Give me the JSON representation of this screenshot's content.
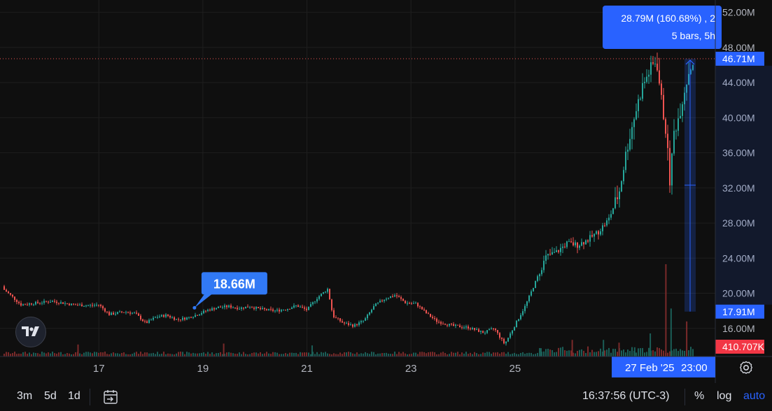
{
  "chart_data": {
    "type": "candlestick",
    "y_axis": {
      "ticks": [
        "52.00M",
        "48.00M",
        "44.00M",
        "40.00M",
        "36.00M",
        "32.00M",
        "28.00M",
        "24.00M",
        "20.00M",
        "16.00M"
      ],
      "tick_values": [
        52,
        48,
        44,
        40,
        36,
        32,
        28,
        24,
        20,
        16
      ],
      "unit": "M",
      "range": [
        12.8,
        53.4
      ]
    },
    "x_axis": {
      "ticks": [
        "17",
        "19",
        "21",
        "23",
        "25"
      ],
      "tick_values": [
        17,
        19,
        21,
        23,
        25
      ],
      "range": [
        15.1,
        28.85
      ]
    },
    "price_path": [
      [
        15.1,
        20.8
      ],
      [
        15.3,
        19.8
      ],
      [
        15.5,
        18.7
      ],
      [
        15.8,
        18.9
      ],
      [
        16.1,
        19.1
      ],
      [
        16.5,
        18.7
      ],
      [
        16.8,
        18.6
      ],
      [
        17.0,
        18.7
      ],
      [
        17.2,
        17.6
      ],
      [
        17.5,
        17.9
      ],
      [
        17.7,
        17.7
      ],
      [
        17.9,
        16.6
      ],
      [
        18.1,
        17.3
      ],
      [
        18.3,
        17.5
      ],
      [
        18.5,
        17.0
      ],
      [
        18.7,
        17.2
      ],
      [
        18.9,
        17.6
      ],
      [
        19.1,
        18.1
      ],
      [
        19.3,
        18.4
      ],
      [
        19.5,
        18.5
      ],
      [
        19.7,
        18.3
      ],
      [
        19.9,
        18.5
      ],
      [
        20.1,
        18.2
      ],
      [
        20.4,
        18.0
      ],
      [
        20.6,
        18.2
      ],
      [
        20.8,
        18.6
      ],
      [
        21.0,
        18.1
      ],
      [
        21.2,
        19.5
      ],
      [
        21.4,
        20.5
      ],
      [
        21.5,
        17.4
      ],
      [
        21.7,
        16.6
      ],
      [
        21.9,
        16.3
      ],
      [
        22.1,
        16.9
      ],
      [
        22.3,
        18.6
      ],
      [
        22.5,
        19.4
      ],
      [
        22.7,
        19.8
      ],
      [
        22.9,
        18.9
      ],
      [
        23.1,
        18.8
      ],
      [
        23.3,
        17.7
      ],
      [
        23.5,
        16.8
      ],
      [
        23.8,
        16.3
      ],
      [
        24.1,
        16.1
      ],
      [
        24.4,
        15.5
      ],
      [
        24.6,
        16.0
      ],
      [
        24.8,
        14.2
      ],
      [
        25.0,
        16.4
      ],
      [
        25.2,
        18.6
      ],
      [
        25.4,
        21.4
      ],
      [
        25.6,
        24.2
      ],
      [
        25.8,
        24.7
      ],
      [
        26.0,
        25.7
      ],
      [
        26.2,
        25.5
      ],
      [
        26.4,
        26.1
      ],
      [
        26.6,
        27.0
      ],
      [
        26.8,
        28.4
      ],
      [
        27.0,
        31.5
      ],
      [
        27.15,
        36.5
      ],
      [
        27.3,
        40.3
      ],
      [
        27.45,
        43.6
      ],
      [
        27.6,
        45.5
      ],
      [
        27.72,
        46.6
      ],
      [
        27.82,
        41.7
      ],
      [
        27.9,
        38.5
      ],
      [
        27.98,
        32.5
      ],
      [
        28.05,
        38.2
      ],
      [
        28.15,
        40.2
      ],
      [
        28.25,
        43.0
      ],
      [
        28.35,
        45.5
      ],
      [
        28.45,
        46.6
      ]
    ],
    "volume_spikes": [
      [
        27.9,
        1.0
      ],
      [
        28.0,
        0.52
      ],
      [
        28.3,
        0.38
      ],
      [
        27.6,
        0.25
      ],
      [
        26.1,
        0.18
      ],
      [
        26.7,
        0.18
      ],
      [
        19.4,
        0.14
      ],
      [
        21.1,
        0.12
      ],
      [
        16.6,
        0.13
      ],
      [
        25.5,
        0.09
      ],
      [
        27.0,
        0.15
      ],
      [
        27.3,
        0.1
      ]
    ],
    "last_price_label": "46.71M",
    "last_price_value": 46.71,
    "measure_low_label": "17.91M",
    "measure_low_value": 17.91,
    "measure_tooltip_line1": "28.79M (160.68%) , 2",
    "measure_tooltip_line2": "5 bars, 5h",
    "callout_label": "18.66M",
    "callout_value": 18.66,
    "callout_x": 19.0,
    "volume_label": "410.707K",
    "crosshair_date": "27 Feb '25",
    "crosshair_time": "23:00",
    "colors": {
      "up": "#26a69a",
      "down": "#ef5350",
      "accent": "#2962ff",
      "accent_label": "#3179f5",
      "volume_label": "#f23645"
    }
  },
  "bottom_bar": {
    "ranges": [
      "3m",
      "5d",
      "1d"
    ],
    "clock": "16:37:56 (UTC-3)",
    "percent": "%",
    "log": "log",
    "auto": "auto"
  }
}
